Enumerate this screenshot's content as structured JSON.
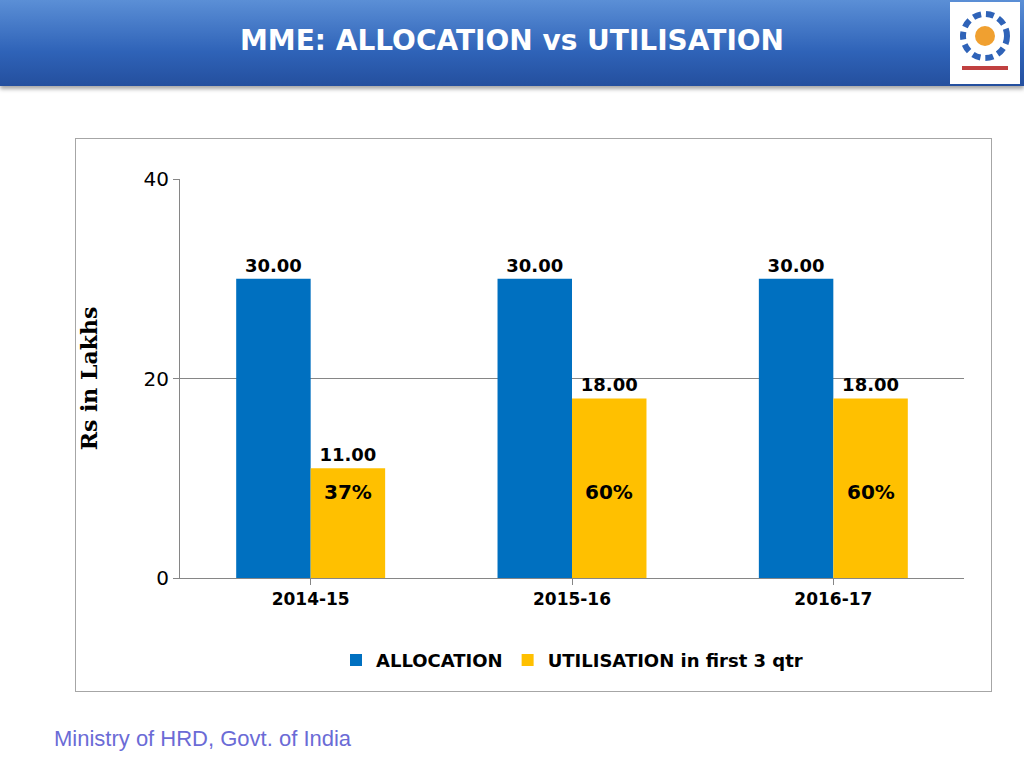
{
  "chart_data": {
    "type": "bar",
    "title": "MME: ALLOCATION vs UTILISATION",
    "y_label": "Rs in Lakhs",
    "footer": "Ministry of HRD, Govt. of India",
    "categories": [
      "2014-15",
      "2015-16",
      "2016-17"
    ],
    "series": [
      {
        "name": "ALLOCATION",
        "color": "#0070c0",
        "values": [
          30,
          30,
          30
        ],
        "value_labels": [
          "30.00",
          "30.00",
          "30.00"
        ]
      },
      {
        "name": "UTILISATION in first 3 qtr",
        "color": "#ffc000",
        "values": [
          11,
          18,
          18
        ],
        "value_labels": [
          "11.00",
          "18.00",
          "18.00"
        ],
        "annotations": [
          "37%",
          "60%",
          "60%"
        ]
      }
    ],
    "ylim": [
      0,
      40
    ],
    "yticks": [
      0,
      20,
      40
    ],
    "grid": true,
    "data_labels": true,
    "legend": "bottom"
  }
}
